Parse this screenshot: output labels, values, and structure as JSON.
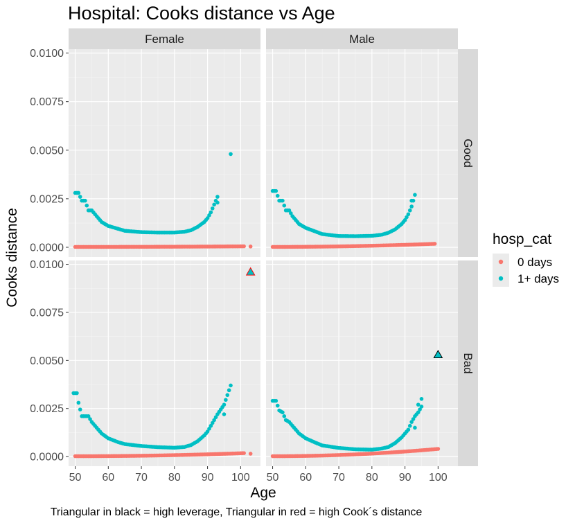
{
  "chart_data": {
    "type": "scatter",
    "title": "Hospital: Cooks distance vs Age",
    "xlabel": "Age",
    "ylabel": "Cooks distance",
    "caption": "Triangular in black = high leverage, Triangular in red = high Cook´s distance",
    "xlim": [
      48,
      106
    ],
    "ylim": [
      -0.0005,
      0.0102
    ],
    "x_ticks": [
      50,
      60,
      70,
      80,
      90,
      100
    ],
    "y_ticks": [
      0.0,
      0.0025,
      0.005,
      0.0075,
      0.01
    ],
    "y_tick_labels": [
      "0.0000",
      "0.0025",
      "0.0050",
      "0.0075",
      "0.0100"
    ],
    "column_facets": [
      "Female",
      "Male"
    ],
    "row_facets": [
      "Good",
      "Bad"
    ],
    "legend": {
      "title": "hosp_cat",
      "position": "right",
      "entries": [
        {
          "label": "0 days",
          "color": "#F8766D"
        },
        {
          "label": "1+ days",
          "color": "#00BFC4"
        }
      ]
    },
    "grid": true,
    "panels": [
      {
        "col": "Female",
        "row": "Good",
        "series": [
          {
            "name": "0 days",
            "color": "#F8766D",
            "x_start": 50,
            "x_end": 101,
            "y_start": 2e-05,
            "y_end": 5e-05,
            "extra_points": [
              [
                103,
                4e-05
              ]
            ]
          },
          {
            "name": "1+ days",
            "color": "#00BFC4",
            "x_start": 50,
            "x_end": 93,
            "x_min": 80,
            "y_min": 0.00075,
            "curve": [
              [
                50,
                0.0028
              ],
              [
                51,
                0.0028
              ],
              [
                52,
                0.0024
              ],
              [
                53,
                0.0024
              ],
              [
                54,
                0.0019
              ],
              [
                55,
                0.0019
              ],
              [
                56,
                0.0017
              ],
              [
                57,
                0.0015
              ],
              [
                58,
                0.0013
              ],
              [
                60,
                0.0011
              ],
              [
                65,
                0.00085
              ],
              [
                70,
                0.00078
              ],
              [
                75,
                0.00076
              ],
              [
                80,
                0.00076
              ],
              [
                83,
                0.0008
              ],
              [
                85,
                0.00088
              ],
              [
                87,
                0.00105
              ],
              [
                89,
                0.0013
              ],
              [
                90,
                0.0015
              ],
              [
                91,
                0.0018
              ],
              [
                93,
                0.0026
              ]
            ],
            "extra_points": [
              [
                93,
                0.0023
              ],
              [
                97,
                0.0048
              ]
            ]
          }
        ],
        "triangles": []
      },
      {
        "col": "Male",
        "row": "Good",
        "series": [
          {
            "name": "0 days",
            "color": "#F8766D",
            "x_start": 50,
            "x_end": 99,
            "y_start": 2e-05,
            "y_end": 0.00018,
            "extra_points": []
          },
          {
            "name": "1+ days",
            "color": "#00BFC4",
            "x_start": 50,
            "x_end": 93,
            "y_min": 0.00055,
            "curve": [
              [
                50,
                0.0029
              ],
              [
                51,
                0.0029
              ],
              [
                52,
                0.0024
              ],
              [
                53,
                0.0024
              ],
              [
                54,
                0.0019
              ],
              [
                55,
                0.0019
              ],
              [
                56,
                0.0016
              ],
              [
                57,
                0.0014
              ],
              [
                58,
                0.0012
              ],
              [
                60,
                0.001
              ],
              [
                65,
                0.00068
              ],
              [
                70,
                0.00058
              ],
              [
                75,
                0.00057
              ],
              [
                80,
                0.00059
              ],
              [
                83,
                0.00065
              ],
              [
                85,
                0.00075
              ],
              [
                87,
                0.00092
              ],
              [
                89,
                0.0012
              ],
              [
                90,
                0.0014
              ],
              [
                91,
                0.0017
              ],
              [
                92,
                0.0021
              ],
              [
                93,
                0.0027
              ]
            ],
            "extra_points": [
              [
                92,
                0.0024
              ]
            ]
          }
        ],
        "triangles": []
      },
      {
        "col": "Female",
        "row": "Bad",
        "series": [
          {
            "name": "0 days",
            "color": "#F8766D",
            "x_start": 50,
            "x_end": 101,
            "y_start": 2e-05,
            "y_end": 0.00018,
            "extra_points": [
              [
                103,
                0.00015
              ]
            ]
          },
          {
            "name": "1+ days",
            "color": "#00BFC4",
            "x_start": 49.5,
            "x_end": 97,
            "y_min": 0.00045,
            "curve": [
              [
                49.5,
                0.0033
              ],
              [
                50.5,
                0.0033
              ],
              [
                51,
                0.0028
              ],
              [
                52,
                0.0021
              ],
              [
                53,
                0.0021
              ],
              [
                54,
                0.0021
              ],
              [
                55,
                0.0018
              ],
              [
                56,
                0.0016
              ],
              [
                57,
                0.0014
              ],
              [
                58,
                0.0012
              ],
              [
                60,
                0.00095
              ],
              [
                63,
                0.00075
              ],
              [
                65,
                0.00065
              ],
              [
                70,
                0.00055
              ],
              [
                75,
                0.00049
              ],
              [
                80,
                0.00046
              ],
              [
                83,
                0.0005
              ],
              [
                85,
                0.0006
              ],
              [
                87,
                0.0008
              ],
              [
                89,
                0.0011
              ],
              [
                90,
                0.0013
              ],
              [
                91,
                0.0016
              ],
              [
                93,
                0.0022
              ],
              [
                95,
                0.0027
              ],
              [
                97,
                0.0037
              ]
            ],
            "extra_points": [
              [
                95,
                0.0022
              ]
            ]
          }
        ],
        "triangles": [
          {
            "x": 103,
            "y": 0.0096,
            "fill": "#00BFC4",
            "stroke": "#FF0000"
          }
        ]
      },
      {
        "col": "Male",
        "row": "Bad",
        "series": [
          {
            "name": "0 days",
            "color": "#F8766D",
            "x_start": 50,
            "x_end": 100,
            "y_start": 2e-05,
            "y_end": 0.0004,
            "extra_points": []
          },
          {
            "name": "1+ days",
            "color": "#00BFC4",
            "x_start": 50,
            "x_end": 95,
            "y_min": 0.00035,
            "curve": [
              [
                50,
                0.0029
              ],
              [
                51,
                0.0029
              ],
              [
                52,
                0.0024
              ],
              [
                53,
                0.0023
              ],
              [
                54,
                0.0019
              ],
              [
                55,
                0.0018
              ],
              [
                56,
                0.0016
              ],
              [
                57,
                0.0014
              ],
              [
                58,
                0.0012
              ],
              [
                60,
                0.00095
              ],
              [
                63,
                0.00072
              ],
              [
                65,
                0.00058
              ],
              [
                70,
                0.00045
              ],
              [
                75,
                0.00038
              ],
              [
                80,
                0.00036
              ],
              [
                83,
                0.00042
              ],
              [
                85,
                0.0005
              ],
              [
                87,
                0.0007
              ],
              [
                89,
                0.001
              ],
              [
                91,
                0.0014
              ],
              [
                92,
                0.0018
              ],
              [
                93,
                0.0021
              ],
              [
                94,
                0.0023
              ],
              [
                95,
                0.0026
              ]
            ],
            "extra_points": [
              [
                93,
                0.0015
              ],
              [
                94,
                0.0027
              ],
              [
                95,
                0.003
              ]
            ]
          }
        ],
        "triangles": [
          {
            "x": 100,
            "y": 0.0053,
            "fill": "#00BFC4",
            "stroke": "#000000"
          }
        ]
      }
    ]
  }
}
